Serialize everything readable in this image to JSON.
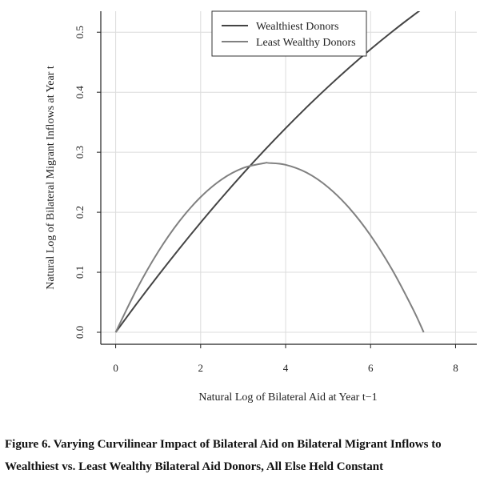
{
  "chart_data": {
    "type": "line",
    "xlabel": "Natural Log of Bilateral Aid at Year t−1",
    "ylabel": "Natural Log of Bilateral Migrant Inflows at Year t",
    "xlim": [
      -0.35,
      8.5
    ],
    "ylim": [
      -0.02,
      0.535
    ],
    "x_ticks": [
      0,
      2,
      4,
      6,
      8
    ],
    "y_ticks": [
      0.0,
      0.1,
      0.2,
      0.3,
      0.4,
      0.5
    ],
    "x_tick_labels": [
      "0",
      "2",
      "4",
      "6",
      "8"
    ],
    "y_tick_labels": [
      "0.0",
      "0.1",
      "0.2",
      "0.3",
      "0.4",
      "0.5"
    ],
    "grid": true,
    "legend_position": "top-center",
    "series": [
      {
        "name": "Wealthiest Donors",
        "color": "#444444",
        "x": [
          0,
          0.5,
          1,
          1.5,
          2,
          2.5,
          3,
          3.5,
          4,
          4.5,
          5,
          5.5,
          6,
          6.5,
          7,
          7.5,
          8,
          8.15
        ],
        "y": [
          0.0,
          0.0481,
          0.0946,
          0.1395,
          0.1828,
          0.2245,
          0.2646,
          0.3031,
          0.34,
          0.3753,
          0.409,
          0.4411,
          0.4716,
          0.5005,
          0.5278,
          0.5535,
          0.5776,
          0.5846
        ]
      },
      {
        "name": "Least Wealthy Donors",
        "color": "#808080",
        "x": [
          0,
          0.5,
          1,
          1.5,
          2,
          2.5,
          3,
          3.5,
          3.6,
          4,
          4.5,
          5,
          5.5,
          6,
          6.5,
          7,
          7.25
        ],
        "y": [
          0.0,
          0.0724,
          0.1341,
          0.1851,
          0.2253,
          0.2549,
          0.2737,
          0.2818,
          0.2821,
          0.2791,
          0.2658,
          0.2417,
          0.2069,
          0.1614,
          0.1052,
          0.0383,
          0.0
        ]
      }
    ]
  },
  "caption": {
    "line1": "Figure 6. Varying Curvilinear Impact of Bilateral Aid on Bilateral Migrant Inflows to",
    "line2": "Wealthiest vs. Least Wealthy Bilateral Aid Donors, All Else Held Constant"
  }
}
